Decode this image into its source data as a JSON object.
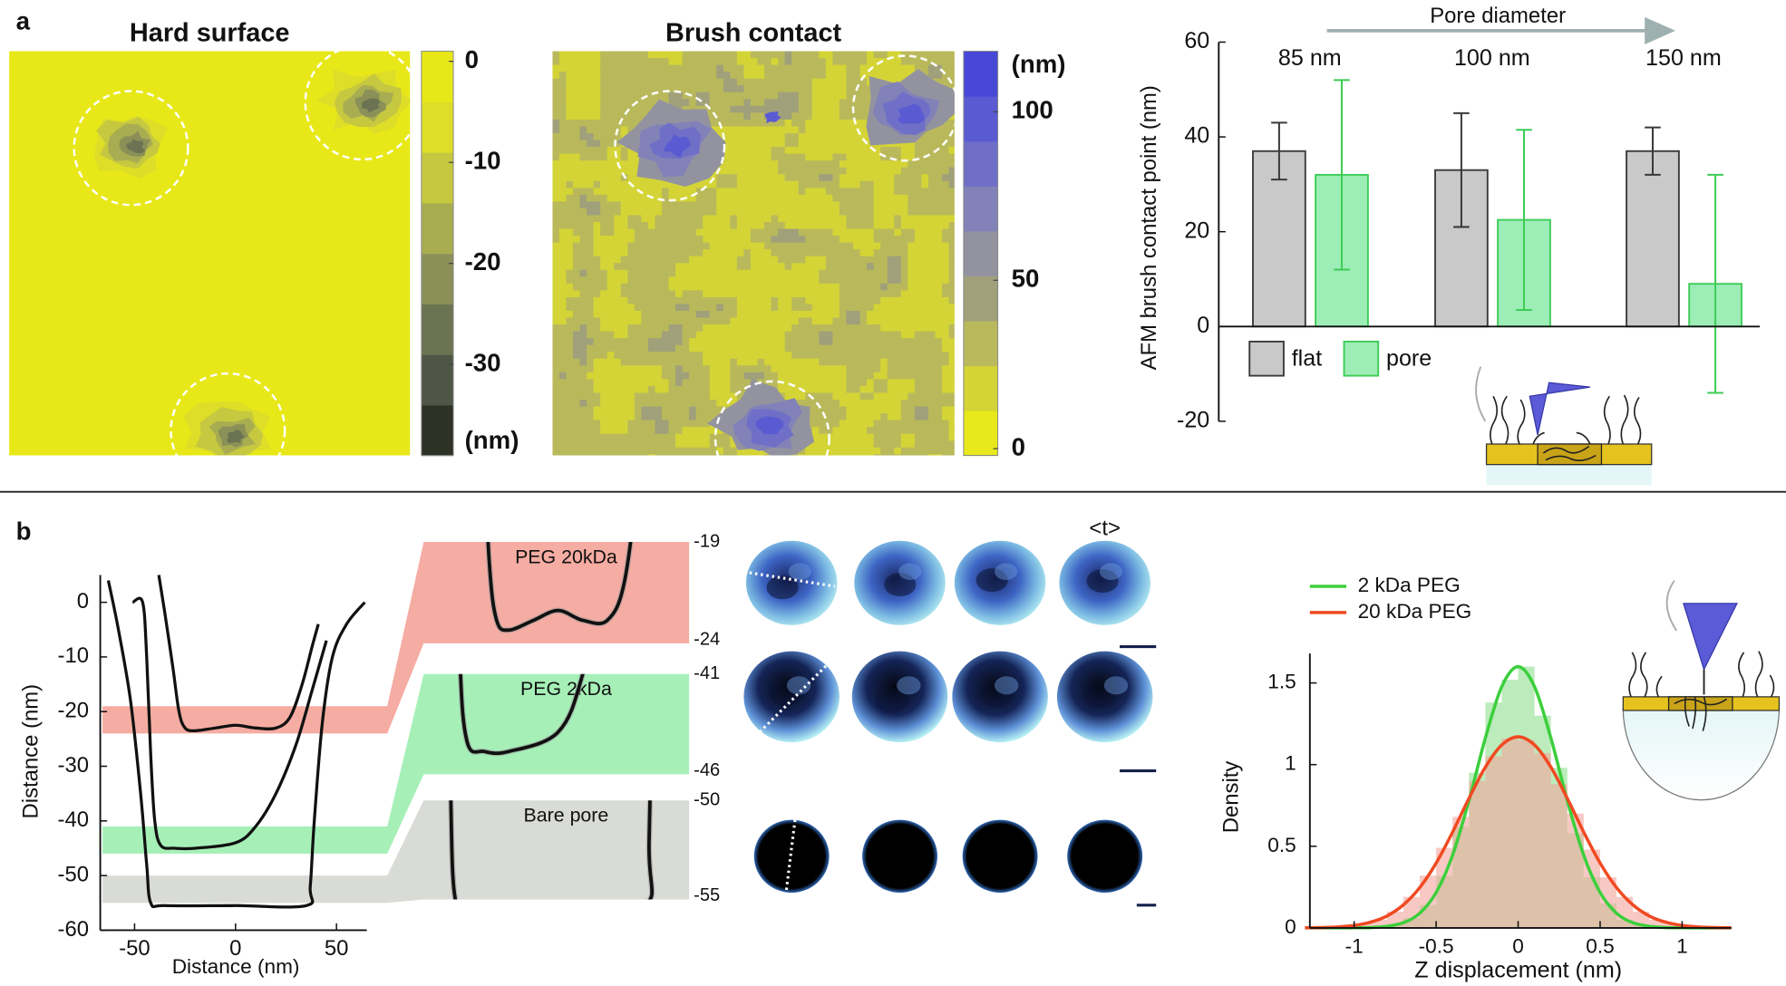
{
  "panel_labels": [
    "a",
    "b"
  ],
  "chart_data": [
    {
      "type": "heatmap",
      "title": "Hard surface",
      "colorbar": {
        "lim": [
          -39,
          1
        ],
        "ticks": [
          0,
          -10,
          -20,
          -30
        ],
        "unit": "(nm)",
        "colors": [
          "#2e3226",
          "#4f5646",
          "#6b7352",
          "#8a9058",
          "#a8ad52",
          "#c6c840",
          "#dede28",
          "#e8e818"
        ]
      }
    },
    {
      "type": "heatmap",
      "title": "Brush contact",
      "colorbar": {
        "lim": [
          -2,
          118
        ],
        "ticks": [
          100,
          50,
          0
        ],
        "unit": "(nm)",
        "colors": [
          "#e8e81a",
          "#d4d436",
          "#b9b95c",
          "#a0a07a",
          "#9393a0",
          "#8282b8",
          "#6f6fc8",
          "#5a5ad2",
          "#4848d8"
        ]
      }
    },
    {
      "type": "bar",
      "ylabel": "AFM brush contact point (nm)",
      "annotation": "Pore diameter",
      "categories": [
        "85 nm",
        "100 nm",
        "150 nm"
      ],
      "series": [
        {
          "name": "flat",
          "color": "#c9c9c9",
          "edge_color": "#3a3a3a",
          "values": [
            37,
            33,
            37
          ],
          "errors": [
            6,
            12,
            5
          ]
        },
        {
          "name": "pore",
          "color": "#9dedb6",
          "edge_color": "#3dcc55",
          "values": [
            32,
            22.5,
            9
          ],
          "errors": [
            20,
            19,
            23
          ]
        }
      ],
      "ylim": [
        -20,
        60
      ],
      "yticks": [
        -20,
        0,
        20,
        40,
        60
      ],
      "legend": "lower left"
    },
    {
      "type": "line",
      "xlabel": "Distance (nm)",
      "ylabel": "Distance (nm)",
      "xlim": [
        -67,
        65
      ],
      "ylim": [
        -60,
        5
      ],
      "xticks": [
        -50,
        0,
        50
      ],
      "yticks": [
        0,
        -10,
        -20,
        -30,
        -40,
        -50,
        -60
      ],
      "color": "#111111",
      "series": [
        {
          "x": [
            -38,
            -35,
            -31,
            -28,
            -25,
            -20,
            -10,
            0,
            10,
            20,
            27,
            33,
            38,
            41
          ],
          "values": [
            5,
            -2,
            -12,
            -20,
            -23,
            -23.5,
            -23,
            -22.5,
            -23,
            -23,
            -21,
            -15,
            -8,
            -4
          ]
        },
        {
          "x": [
            -51,
            -46,
            -44,
            -42,
            -40,
            -37,
            -30,
            -20,
            0,
            10,
            20,
            30,
            38,
            45
          ],
          "values": [
            0,
            0,
            -10,
            -28,
            -40,
            -44.5,
            -45,
            -45,
            -44,
            -41,
            -35,
            -26,
            -16,
            -7
          ]
        },
        {
          "x": [
            -63,
            -58,
            -52,
            -47,
            -44,
            -42,
            -35,
            0,
            35,
            37,
            39,
            43,
            48,
            55,
            64
          ],
          "values": [
            4,
            -5,
            -18,
            -35,
            -48,
            -55,
            -55.5,
            -55.5,
            -55.5,
            -52,
            -40,
            -22,
            -10,
            -4,
            0
          ]
        }
      ],
      "bands": [
        {
          "ylim": [
            -24,
            -19
          ],
          "color": "#f5aca2"
        },
        {
          "ylim": [
            -46,
            -41
          ],
          "color": "#a6f0b8"
        },
        {
          "ylim": [
            -55,
            -50
          ],
          "color": "#d9dbd7"
        }
      ]
    },
    {
      "type": "zoom",
      "panels": [
        {
          "label": "PEG 20kDa",
          "yticks": [
            -19,
            -24
          ]
        },
        {
          "label": "PEG 2kDa",
          "yticks": [
            -41,
            -46
          ]
        },
        {
          "label": "Bare pore",
          "yticks": [
            -50,
            -55
          ]
        }
      ]
    },
    {
      "type": "images",
      "label": "<t>"
    },
    {
      "type": "histogram",
      "xlabel": "Z displacement (nm)",
      "ylabel": "Density",
      "xlim": [
        -1.27,
        1.3
      ],
      "ylim": [
        0,
        1.68
      ],
      "xticks": [
        -1,
        -0.5,
        0,
        0.5,
        1
      ],
      "yticks": [
        0,
        0.5,
        1,
        1.5
      ],
      "legend": "upper left",
      "bins": [
        -1.2,
        -1.1,
        -1.0,
        -0.9,
        -0.8,
        -0.7,
        -0.6,
        -0.5,
        -0.4,
        -0.3,
        -0.2,
        -0.1,
        0,
        0.1,
        0.2,
        0.3,
        0.4,
        0.5,
        0.6,
        0.7,
        0.8,
        0.9,
        1.0,
        1.1,
        1.2
      ],
      "x": [
        -1.3,
        -1.2,
        -1.1,
        -1.0,
        -0.9,
        -0.8,
        -0.7,
        -0.6,
        -0.5,
        -0.4,
        -0.3,
        -0.2,
        -0.1,
        0,
        0.1,
        0.2,
        0.3,
        0.4,
        0.5,
        0.6,
        0.7,
        0.8,
        0.9,
        1.0,
        1.1,
        1.2,
        1.3
      ],
      "series": [
        {
          "name": "2 kDa PEG",
          "color": "#3ccf3c",
          "hist_color": "#8fe08f",
          "counts": [
            0,
            0,
            0.001,
            0.005,
            0.02,
            0.06,
            0.14,
            0.32,
            0.62,
            0.95,
            1.38,
            1.52,
            1.6,
            1.3,
            0.98,
            0.58,
            0.31,
            0.15,
            0.05,
            0.017,
            0.005,
            0.001,
            0,
            0
          ],
          "values": [
            0,
            0,
            0,
            0.001,
            0.002,
            0.01,
            0.032,
            0.09,
            0.217,
            0.445,
            0.779,
            1.162,
            1.477,
            1.6,
            1.477,
            1.162,
            0.779,
            0.445,
            0.217,
            0.09,
            0.032,
            0.01,
            0.002,
            0.001,
            0,
            0,
            0
          ]
        },
        {
          "name": "20 kDa PEG",
          "color": "#f04a22",
          "hist_color": "#f4a59c",
          "counts": [
            0.004,
            0.011,
            0.025,
            0.05,
            0.1,
            0.19,
            0.32,
            0.49,
            0.68,
            0.9,
            1.05,
            1.16,
            1.15,
            1.07,
            0.88,
            0.7,
            0.48,
            0.31,
            0.19,
            0.1,
            0.05,
            0.022,
            0.01,
            0.004
          ],
          "values": [
            0.001,
            0.002,
            0.006,
            0.015,
            0.035,
            0.073,
            0.141,
            0.247,
            0.397,
            0.586,
            0.793,
            0.984,
            1.12,
            1.17,
            1.12,
            0.984,
            0.793,
            0.586,
            0.397,
            0.247,
            0.141,
            0.073,
            0.035,
            0.015,
            0.006,
            0.002,
            0.001
          ]
        }
      ]
    }
  ]
}
